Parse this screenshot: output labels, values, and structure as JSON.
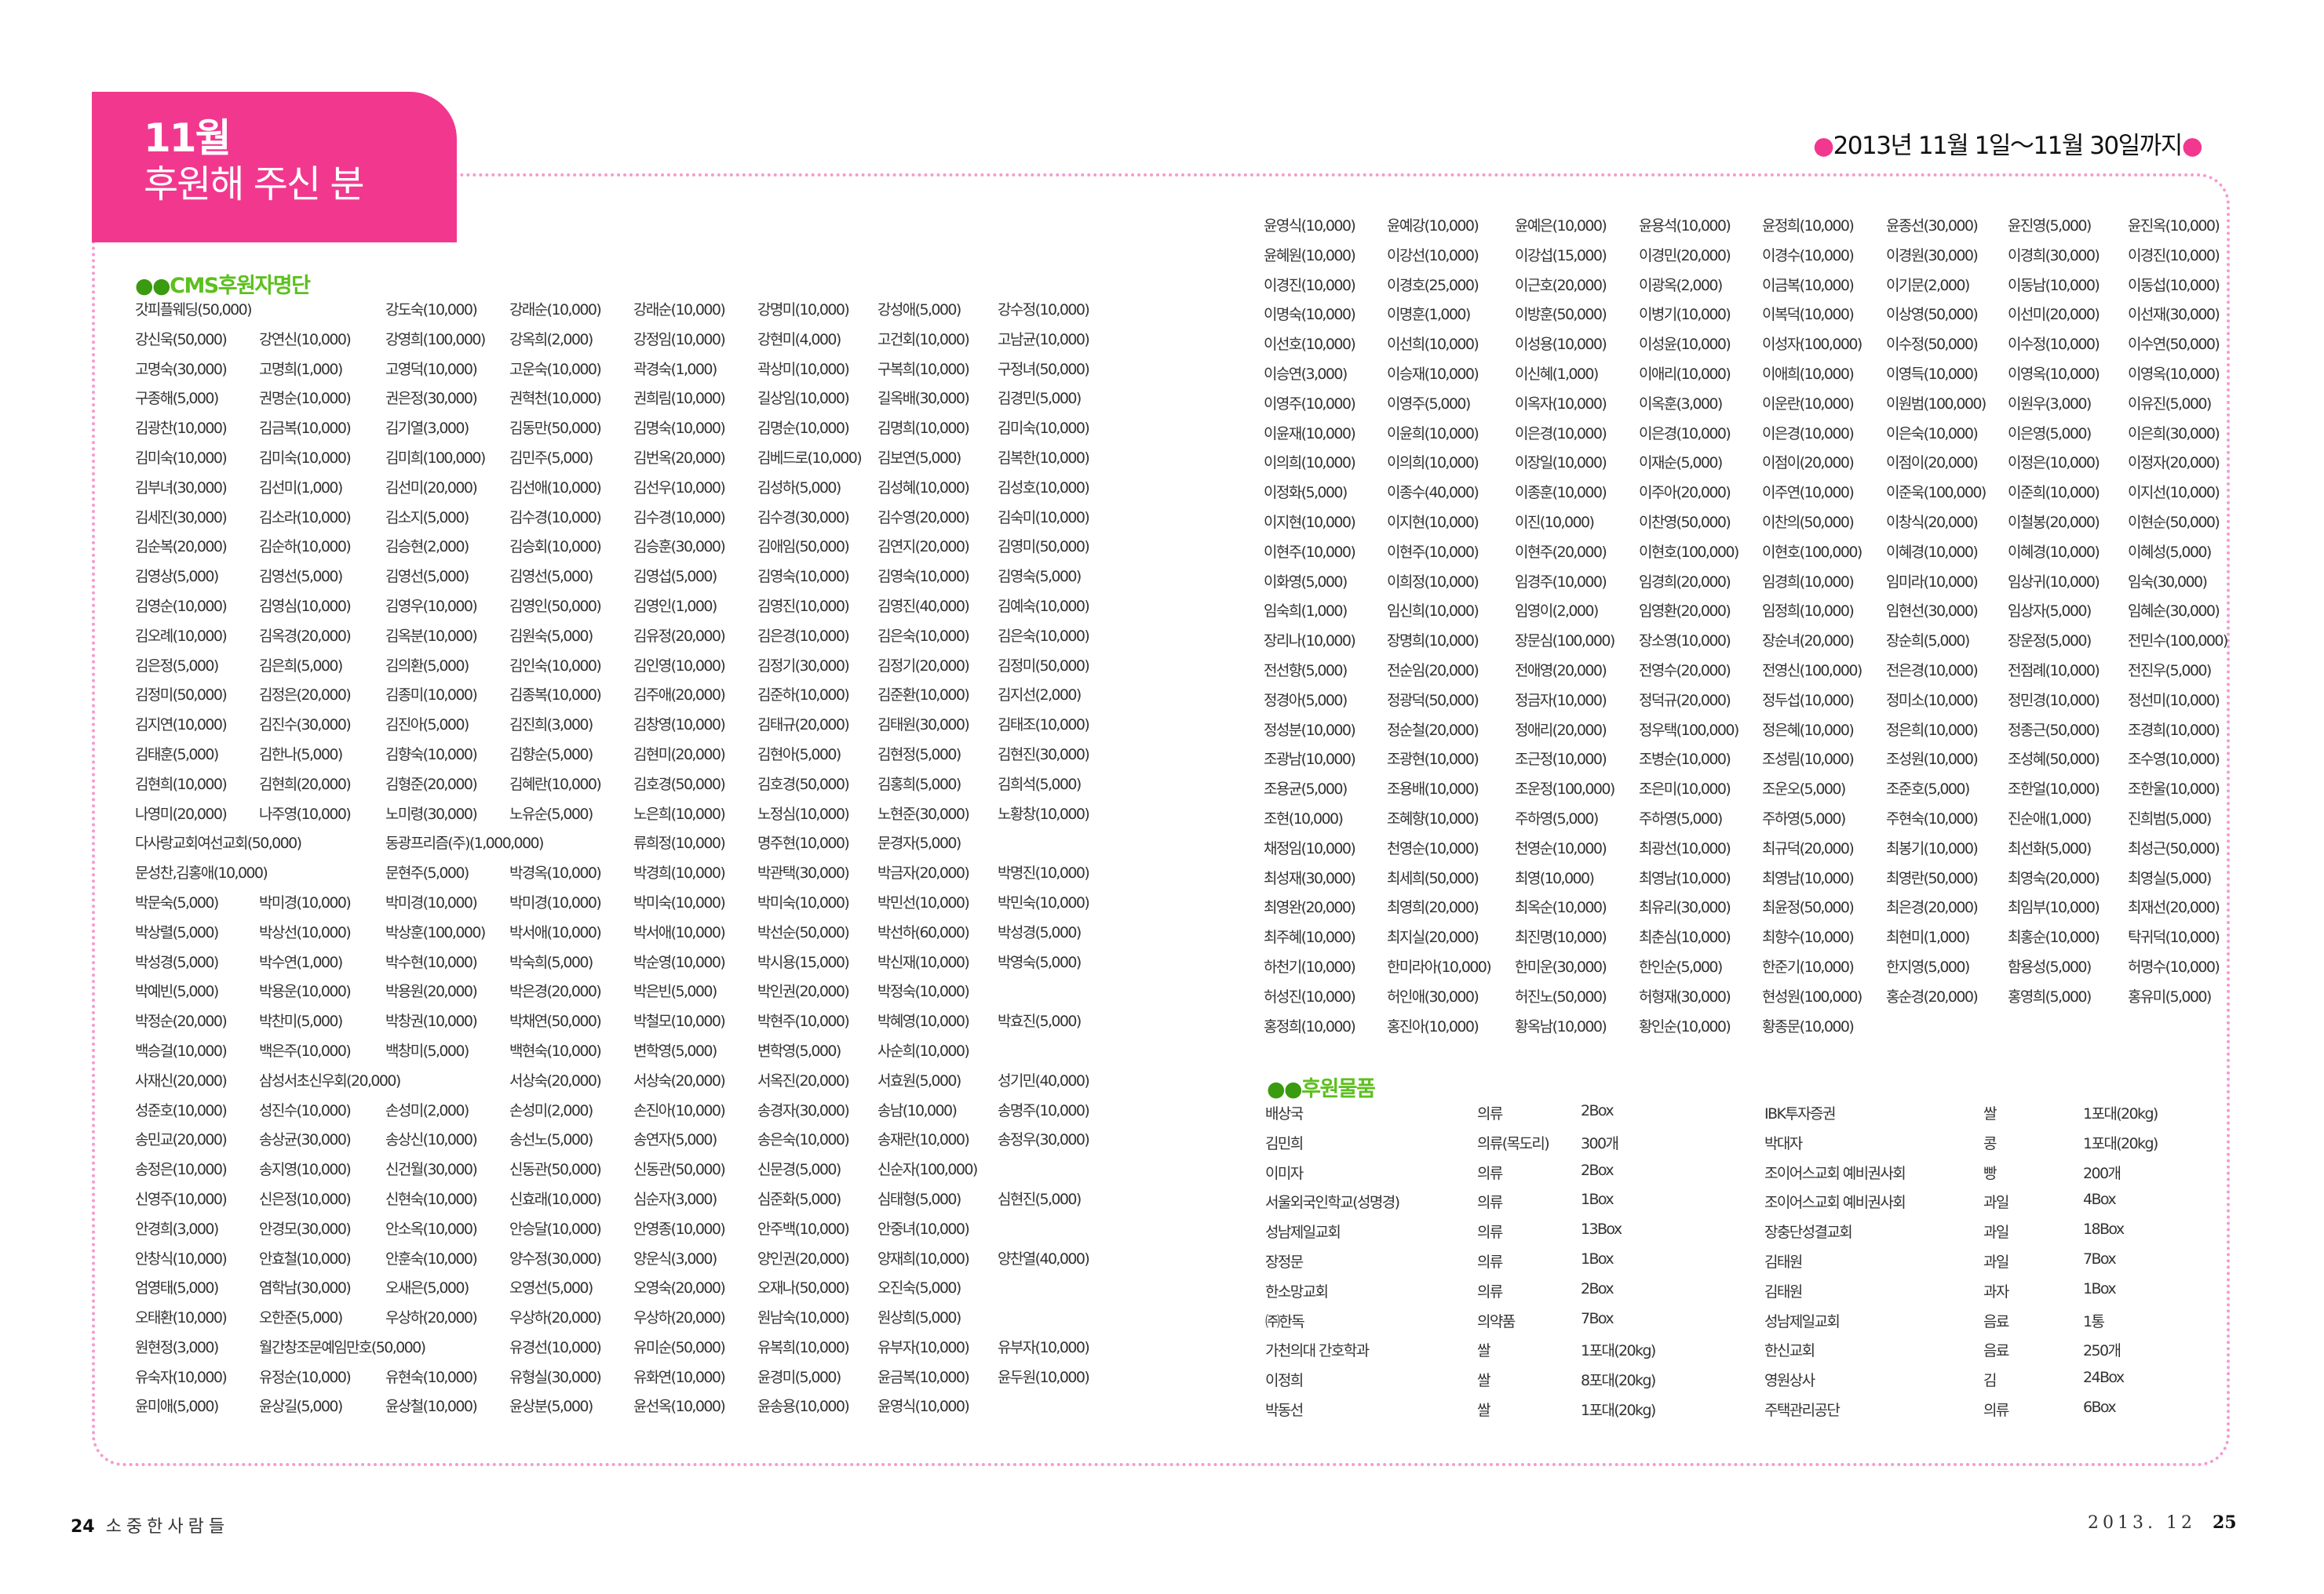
{
  "header": {
    "month": "11월",
    "title": "후원해 주신 분",
    "period": "2013년 11월 1일～11월 30일까지",
    "accent": "#f2388e"
  },
  "cms": {
    "title": "CMS후원자명단",
    "rows": [
      [
        "갓피플웨딩(50,000)",
        "",
        "강도숙(10,000)",
        "강래순(10,000)",
        "강래순(10,000)",
        "강명미(10,000)",
        "강성애(5,000)",
        "강수정(10,000)"
      ],
      [
        "강신욱(50,000)",
        "강연신(10,000)",
        "강영희(100,000)",
        "강옥희(2,000)",
        "강정임(10,000)",
        "강현미(4,000)",
        "고건회(10,000)",
        "고남균(10,000)"
      ],
      [
        "고명숙(30,000)",
        "고명희(1,000)",
        "고영덕(10,000)",
        "고운숙(10,000)",
        "곽경숙(1,000)",
        "곽상미(10,000)",
        "구복희(10,000)",
        "구정녀(50,000)"
      ],
      [
        "구종해(5,000)",
        "권명순(10,000)",
        "권은정(30,000)",
        "권혁천(10,000)",
        "권희림(10,000)",
        "길상임(10,000)",
        "길옥배(30,000)",
        "김경민(5,000)"
      ],
      [
        "김광찬(10,000)",
        "김금복(10,000)",
        "김기열(3,000)",
        "김동만(50,000)",
        "김명숙(10,000)",
        "김명순(10,000)",
        "김명희(10,000)",
        "김미숙(10,000)"
      ],
      [
        "김미숙(10,000)",
        "김미숙(10,000)",
        "김미희(100,000)",
        "김민주(5,000)",
        "김번옥(20,000)",
        "김베드로(10,000)",
        "김보연(5,000)",
        "김복한(10,000)"
      ],
      [
        "김부녀(30,000)",
        "김선미(1,000)",
        "김선미(20,000)",
        "김선애(10,000)",
        "김선우(10,000)",
        "김성하(5,000)",
        "김성혜(10,000)",
        "김성호(10,000)"
      ],
      [
        "김세진(30,000)",
        "김소라(10,000)",
        "김소지(5,000)",
        "김수경(10,000)",
        "김수경(10,000)",
        "김수경(30,000)",
        "김수영(20,000)",
        "김숙미(10,000)"
      ],
      [
        "김순복(20,000)",
        "김순하(10,000)",
        "김승현(2,000)",
        "김승회(10,000)",
        "김승훈(30,000)",
        "김애임(50,000)",
        "김연지(20,000)",
        "김영미(50,000)"
      ],
      [
        "김영상(5,000)",
        "김영선(5,000)",
        "김영선(5,000)",
        "김영선(5,000)",
        "김영섭(5,000)",
        "김영숙(10,000)",
        "김영숙(10,000)",
        "김영숙(5,000)"
      ],
      [
        "김영순(10,000)",
        "김영심(10,000)",
        "김영우(10,000)",
        "김영인(50,000)",
        "김영인(1,000)",
        "김영진(10,000)",
        "김영진(40,000)",
        "김예숙(10,000)"
      ],
      [
        "김오례(10,000)",
        "김옥경(20,000)",
        "김옥분(10,000)",
        "김원숙(5,000)",
        "김유정(20,000)",
        "김은경(10,000)",
        "김은숙(10,000)",
        "김은숙(10,000)"
      ],
      [
        "김은정(5,000)",
        "김은희(5,000)",
        "김의환(5,000)",
        "김인숙(10,000)",
        "김인영(10,000)",
        "김정기(30,000)",
        "김정기(20,000)",
        "김정미(50,000)"
      ],
      [
        "김정미(50,000)",
        "김정은(20,000)",
        "김종미(10,000)",
        "김종복(10,000)",
        "김주애(20,000)",
        "김준하(10,000)",
        "김준환(10,000)",
        "김지선(2,000)"
      ],
      [
        "김지연(10,000)",
        "김진수(30,000)",
        "김진아(5,000)",
        "김진희(3,000)",
        "김창영(10,000)",
        "김태규(20,000)",
        "김태원(30,000)",
        "김태조(10,000)"
      ],
      [
        "김태훈(5,000)",
        "김한나(5,000)",
        "김향숙(10,000)",
        "김향순(5,000)",
        "김현미(20,000)",
        "김현아(5,000)",
        "김현정(5,000)",
        "김현진(30,000)"
      ],
      [
        "김현희(10,000)",
        "김현희(20,000)",
        "김형준(20,000)",
        "김혜란(10,000)",
        "김호경(50,000)",
        "김호경(50,000)",
        "김홍희(5,000)",
        "김희석(5,000)"
      ],
      [
        "나영미(20,000)",
        "나주영(10,000)",
        "노미령(30,000)",
        "노유순(5,000)",
        "노은희(10,000)",
        "노정심(10,000)",
        "노현준(30,000)",
        "노황창(10,000)"
      ],
      [
        "다사랑교회여선교회(50,000)",
        "",
        "동광프리즘(주)(1,000,000)",
        "",
        "류희정(10,000)",
        "명주현(10,000)",
        "문경자(5,000)",
        ""
      ],
      [
        "문성찬,김홍애(10,000)",
        "",
        "문현주(5,000)",
        "박경옥(10,000)",
        "박경희(10,000)",
        "박관택(30,000)",
        "박금자(20,000)",
        "박명진(10,000)"
      ],
      [
        "박문숙(5,000)",
        "박미경(10,000)",
        "박미경(10,000)",
        "박미경(10,000)",
        "박미숙(10,000)",
        "박미숙(10,000)",
        "박민선(10,000)",
        "박민숙(10,000)"
      ],
      [
        "박상렬(5,000)",
        "박상선(10,000)",
        "박상훈(100,000)",
        "박서애(10,000)",
        "박서애(10,000)",
        "박선순(50,000)",
        "박선하(60,000)",
        "박성경(5,000)"
      ],
      [
        "박성경(5,000)",
        "박수연(1,000)",
        "박수현(10,000)",
        "박숙희(5,000)",
        "박순영(10,000)",
        "박시용(15,000)",
        "박신재(10,000)",
        "박영숙(5,000)"
      ],
      [
        "박예빈(5,000)",
        "박용운(10,000)",
        "박용원(20,000)",
        "박은경(20,000)",
        "박은빈(5,000)",
        "박인권(20,000)",
        "박정숙(10,000)",
        ""
      ],
      [
        "박정순(20,000)",
        "박찬미(5,000)",
        "박창권(10,000)",
        "박채연(50,000)",
        "박철모(10,000)",
        "박현주(10,000)",
        "박혜영(10,000)",
        "박효진(5,000)"
      ],
      [
        "백승걸(10,000)",
        "백은주(10,000)",
        "백창미(5,000)",
        "백현숙(10,000)",
        "변학영(5,000)",
        "변학영(5,000)",
        "사순희(10,000)",
        ""
      ],
      [
        "사재신(20,000)",
        "삼성서초신우회(20,000)",
        "",
        "서상숙(20,000)",
        "서상숙(20,000)",
        "서옥진(20,000)",
        "서효원(5,000)",
        "성기민(40,000)"
      ],
      [
        "성준호(10,000)",
        "성진수(10,000)",
        "손성미(2,000)",
        "손성미(2,000)",
        "손진아(10,000)",
        "송경자(30,000)",
        "송남(10,000)",
        "송명주(10,000)"
      ],
      [
        "송민교(20,000)",
        "송상균(30,000)",
        "송상신(10,000)",
        "송선노(5,000)",
        "송연자(5,000)",
        "송은숙(10,000)",
        "송재란(10,000)",
        "송정우(30,000)"
      ],
      [
        "송정은(10,000)",
        "송지영(10,000)",
        "신건월(30,000)",
        "신동관(50,000)",
        "신동관(50,000)",
        "신문경(5,000)",
        "신순자(100,000)",
        ""
      ],
      [
        "신영주(10,000)",
        "신은정(10,000)",
        "신현숙(10,000)",
        "신효래(10,000)",
        "심순자(3,000)",
        "심준화(5,000)",
        "심태형(5,000)",
        "심현진(5,000)"
      ],
      [
        "안경희(3,000)",
        "안경모(30,000)",
        "안소옥(10,000)",
        "안승달(10,000)",
        "안영종(10,000)",
        "안주백(10,000)",
        "안중녀(10,000)",
        ""
      ],
      [
        "안창식(10,000)",
        "안효철(10,000)",
        "안훈숙(10,000)",
        "양수정(30,000)",
        "양운식(3,000)",
        "양인권(20,000)",
        "양재희(10,000)",
        "양찬열(40,000)"
      ],
      [
        "엄영태(5,000)",
        "염학남(30,000)",
        "오새은(5,000)",
        "오영선(5,000)",
        "오영숙(20,000)",
        "오재나(50,000)",
        "오진숙(5,000)",
        ""
      ],
      [
        "오태환(10,000)",
        "오한준(5,000)",
        "우상하(20,000)",
        "우상하(20,000)",
        "우상하(20,000)",
        "원남숙(10,000)",
        "원상희(5,000)",
        ""
      ],
      [
        "원현정(3,000)",
        "월간창조문예임만호(50,000)",
        "",
        "유경선(10,000)",
        "유미순(50,000)",
        "유복희(10,000)",
        "유부자(10,000)",
        "유부자(10,000)"
      ],
      [
        "유숙자(10,000)",
        "유정순(10,000)",
        "유현숙(10,000)",
        "유형실(30,000)",
        "유화연(10,000)",
        "윤경미(5,000)",
        "윤금복(10,000)",
        "윤두원(10,000)"
      ],
      [
        "윤미애(5,000)",
        "윤상길(5,000)",
        "윤상철(10,000)",
        "윤상분(5,000)",
        "윤선옥(10,000)",
        "윤송용(10,000)",
        "윤영식(10,000)",
        ""
      ],
      [
        "윤영식(10,000)",
        "윤예강(10,000)",
        "윤예은(10,000)",
        "윤용석(10,000)",
        "윤정희(10,000)",
        "윤종선(30,000)",
        "윤진영(5,000)",
        "윤진옥(10,000)"
      ],
      [
        "윤혜원(10,000)",
        "이강선(10,000)",
        "이강섭(15,000)",
        "이경민(20,000)",
        "이경수(10,000)",
        "이경원(30,000)",
        "이경희(30,000)",
        "이경진(10,000)"
      ],
      [
        "이경진(10,000)",
        "이경호(25,000)",
        "이근호(20,000)",
        "이광옥(2,000)",
        "이금복(10,000)",
        "이기문(2,000)",
        "이동남(10,000)",
        "이동섭(10,000)"
      ],
      [
        "이명숙(10,000)",
        "이명훈(1,000)",
        "이방훈(50,000)",
        "이병기(10,000)",
        "이복덕(10,000)",
        "이상영(50,000)",
        "이선미(20,000)",
        "이선재(30,000)"
      ],
      [
        "이선호(10,000)",
        "이선희(10,000)",
        "이성용(10,000)",
        "이성윤(10,000)",
        "이성자(100,000)",
        "이수정(50,000)",
        "이수정(10,000)",
        "이수연(50,000)"
      ],
      [
        "이승연(3,000)",
        "이승재(10,000)",
        "이신혜(1,000)",
        "이애리(10,000)",
        "이애희(10,000)",
        "이영득(10,000)",
        "이영옥(10,000)",
        "이영옥(10,000)"
      ],
      [
        "이영주(10,000)",
        "이영주(5,000)",
        "이옥자(10,000)",
        "이옥훈(3,000)",
        "이운란(10,000)",
        "이원범(100,000)",
        "이원우(3,000)",
        "이유진(5,000)"
      ],
      [
        "이윤재(10,000)",
        "이윤희(10,000)",
        "이은경(10,000)",
        "이은경(10,000)",
        "이은경(10,000)",
        "이은숙(10,000)",
        "이은영(5,000)",
        "이은희(30,000)"
      ],
      [
        "이의희(10,000)",
        "이의희(10,000)",
        "이장일(10,000)",
        "이재순(5,000)",
        "이점이(20,000)",
        "이점이(20,000)",
        "이정은(10,000)",
        "이정자(20,000)"
      ],
      [
        "이정화(5,000)",
        "이종수(40,000)",
        "이종훈(10,000)",
        "이주아(20,000)",
        "이주연(10,000)",
        "이준욱(100,000)",
        "이준희(10,000)",
        "이지선(10,000)"
      ],
      [
        "이지현(10,000)",
        "이지현(10,000)",
        "이진(10,000)",
        "이찬영(50,000)",
        "이찬의(50,000)",
        "이창식(20,000)",
        "이철봉(20,000)",
        "이현순(50,000)"
      ],
      [
        "이현주(10,000)",
        "이현주(10,000)",
        "이현주(20,000)",
        "이현호(100,000)",
        "이현호(100,000)",
        "이혜경(10,000)",
        "이혜경(10,000)",
        "이혜성(5,000)"
      ],
      [
        "이화영(5,000)",
        "이희정(10,000)",
        "임경주(10,000)",
        "임경희(20,000)",
        "임경희(10,000)",
        "임미라(10,000)",
        "임상귀(10,000)",
        "임숙(30,000)"
      ],
      [
        "임숙희(1,000)",
        "임신희(10,000)",
        "임영이(2,000)",
        "임영환(20,000)",
        "임정희(10,000)",
        "임현선(30,000)",
        "임상자(5,000)",
        "임혜순(30,000)"
      ],
      [
        "장리나(10,000)",
        "장명희(10,000)",
        "장문심(100,000)",
        "장소영(10,000)",
        "장순녀(20,000)",
        "장순희(5,000)",
        "장운정(5,000)",
        "전민수(100,000)"
      ],
      [
        "전선향(5,000)",
        "전순임(20,000)",
        "전애영(20,000)",
        "전영수(20,000)",
        "전영신(100,000)",
        "전은경(10,000)",
        "전점례(10,000)",
        "전진우(5,000)"
      ],
      [
        "정경아(5,000)",
        "정광덕(50,000)",
        "정금자(10,000)",
        "정덕규(20,000)",
        "정두섭(10,000)",
        "정미소(10,000)",
        "정민경(10,000)",
        "정선미(10,000)"
      ],
      [
        "정성분(10,000)",
        "정순철(20,000)",
        "정애리(20,000)",
        "정우택(100,000)",
        "정은혜(10,000)",
        "정은희(10,000)",
        "정종근(50,000)",
        "조경희(10,000)"
      ],
      [
        "조광남(10,000)",
        "조광현(10,000)",
        "조근정(10,000)",
        "조병순(10,000)",
        "조성림(10,000)",
        "조성원(10,000)",
        "조성혜(50,000)",
        "조수영(10,000)"
      ],
      [
        "조용균(5,000)",
        "조용배(10,000)",
        "조운정(100,000)",
        "조은미(10,000)",
        "조운오(5,000)",
        "조준호(5,000)",
        "조한얼(10,000)",
        "조한울(10,000)"
      ],
      [
        "조현(10,000)",
        "조혜향(10,000)",
        "주하영(5,000)",
        "주하영(5,000)",
        "주하영(5,000)",
        "주현숙(10,000)",
        "진순애(1,000)",
        "진희범(5,000)"
      ],
      [
        "채정임(10,000)",
        "천영순(10,000)",
        "천영순(10,000)",
        "최광선(10,000)",
        "최규덕(20,000)",
        "최봉기(10,000)",
        "최선화(5,000)",
        "최성근(50,000)"
      ],
      [
        "최성재(30,000)",
        "최세희(50,000)",
        "최영(10,000)",
        "최영남(10,000)",
        "최영남(10,000)",
        "최영란(50,000)",
        "최영숙(20,000)",
        "최영실(5,000)"
      ],
      [
        "최영완(20,000)",
        "최영희(20,000)",
        "최옥순(10,000)",
        "최유리(30,000)",
        "최윤정(50,000)",
        "최은경(20,000)",
        "최임부(10,000)",
        "최재선(20,000)"
      ],
      [
        "최주혜(10,000)",
        "최지실(20,000)",
        "최진명(10,000)",
        "최춘심(10,000)",
        "최향수(10,000)",
        "최현미(1,000)",
        "최홍순(10,000)",
        "탁귀덕(10,000)"
      ],
      [
        "하천기(10,000)",
        "한미라아(10,000)",
        "한미운(30,000)",
        "한인순(5,000)",
        "한준기(10,000)",
        "한지영(5,000)",
        "함용성(5,000)",
        "허명수(10,000)"
      ],
      [
        "허성진(10,000)",
        "허인애(30,000)",
        "허진노(50,000)",
        "허형재(30,000)",
        "현성원(100,000)",
        "홍순경(20,000)",
        "홍영희(5,000)",
        "홍유미(5,000)"
      ],
      [
        "홍정희(10,000)",
        "홍진아(10,000)",
        "황옥남(10,000)",
        "황인순(10,000)",
        "황종문(10,000)",
        "",
        "",
        ""
      ]
    ]
  },
  "goods": {
    "title": "후원물품",
    "rows": [
      [
        "배상국",
        "의류",
        "2Box",
        "IBK투자증권",
        "쌀",
        "1포대(20kg)"
      ],
      [
        "김민희",
        "의류(목도리)",
        "300개",
        "박대자",
        "콩",
        "1포대(20kg)"
      ],
      [
        "이미자",
        "의류",
        "2Box",
        "조이어스교회 예비권사회",
        "빵",
        "200개"
      ],
      [
        "서울외국인학교(성명경)",
        "의류",
        "1Box",
        "조이어스교회 예비권사회",
        "과일",
        "4Box"
      ],
      [
        "성남제일교회",
        "의류",
        "13Box",
        "장충단성결교회",
        "과일",
        "18Box"
      ],
      [
        "장정문",
        "의류",
        "1Box",
        "김태원",
        "과일",
        "7Box"
      ],
      [
        "한소망교회",
        "의류",
        "2Box",
        "김태원",
        "과자",
        "1Box"
      ],
      [
        "㈜한독",
        "의약품",
        "7Box",
        "성남제일교회",
        "음료",
        "1통"
      ],
      [
        "가천의대 간호학과",
        "쌀",
        "1포대(20kg)",
        "한신교회",
        "음료",
        "250개"
      ],
      [
        "이정희",
        "쌀",
        "8포대(20kg)",
        "영원상사",
        "김",
        "24Box"
      ],
      [
        "박동선",
        "쌀",
        "1포대(20kg)",
        "주택관리공단",
        "의류",
        "6Box"
      ]
    ]
  },
  "footer": {
    "left_page": "24",
    "left_title": "소중한사람들",
    "right_date": "2013. 12",
    "right_page": "25"
  }
}
